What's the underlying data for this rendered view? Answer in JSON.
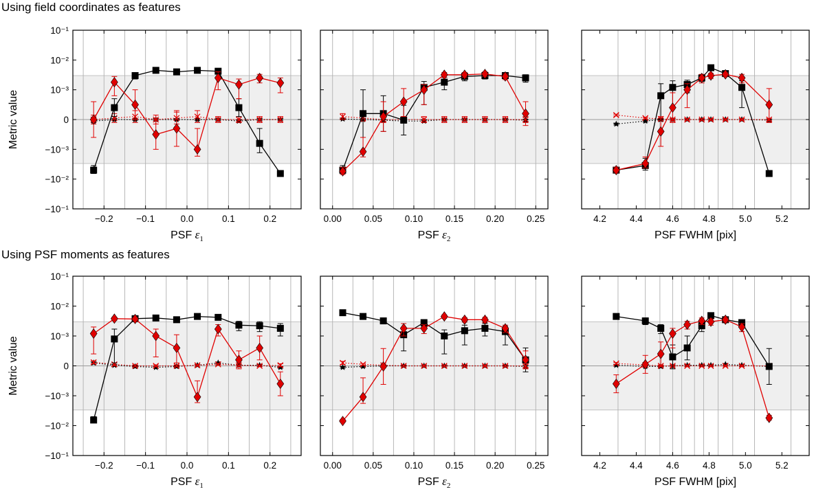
{
  "sections": [
    {
      "title": "Using field coordinates as features"
    },
    {
      "title": "Using PSF moments as features"
    }
  ],
  "shared": {
    "ylabel": "Metric value",
    "ytick_labels": [
      "−10⁻¹",
      "−10⁻²",
      "−10⁻³",
      "0",
      "10⁻³",
      "10⁻²",
      "10⁻¹"
    ],
    "ytick_values": [
      -0.1,
      -0.01,
      -0.001,
      0,
      0.001,
      0.01,
      0.1
    ],
    "linthresh": 0.001,
    "band": [
      -0.003,
      0.003
    ],
    "colors": {
      "black_series": "#000000",
      "red_series": "#e00000",
      "band": "#efefef",
      "grid": "#b0b0b0"
    }
  },
  "columns": [
    {
      "xlabel_prefix": "PSF ",
      "xlabel_symbol": "ε",
      "xlabel_subscript": "1",
      "xlabel": "",
      "xlim": [
        -0.275,
        0.275
      ],
      "xticks": [
        -0.2,
        -0.1,
        0.0,
        0.1,
        0.2
      ],
      "xtick_labels": [
        "−0.2",
        "−0.1",
        "0.0",
        "0.1",
        "0.2"
      ],
      "gridlines": [
        -0.25,
        -0.2,
        -0.15,
        -0.1,
        -0.05,
        0.0,
        0.05,
        0.1,
        0.15,
        0.2,
        0.25
      ],
      "bins": [
        -0.225,
        -0.175,
        -0.125,
        -0.075,
        -0.025,
        0.025,
        0.075,
        0.125,
        0.175,
        0.225
      ]
    },
    {
      "xlabel_prefix": "PSF ",
      "xlabel_symbol": "ε",
      "xlabel_subscript": "2",
      "xlabel": "",
      "xlim": [
        -0.015,
        0.265
      ],
      "xticks": [
        0.0,
        0.05,
        0.1,
        0.15,
        0.2,
        0.25
      ],
      "xtick_labels": [
        "0.00",
        "0.05",
        "0.10",
        "0.15",
        "0.20",
        "0.25"
      ],
      "gridlines": [
        0.0,
        0.025,
        0.05,
        0.075,
        0.1,
        0.125,
        0.15,
        0.175,
        0.2,
        0.225,
        0.25
      ],
      "bins": [
        0.0125,
        0.0375,
        0.0625,
        0.0875,
        0.1125,
        0.1375,
        0.1625,
        0.1875,
        0.2125,
        0.2375
      ]
    },
    {
      "xlabel_prefix": "",
      "xlabel_symbol": "",
      "xlabel_subscript": "",
      "xlabel": "PSF FWHM [pix]",
      "xlim": [
        4.1,
        5.35
      ],
      "xticks": [
        4.2,
        4.4,
        4.6,
        4.8,
        5.0,
        5.2
      ],
      "xtick_labels": [
        "4.2",
        "4.4",
        "4.6",
        "4.8",
        "5.0",
        "5.2"
      ],
      "gridlines": [
        4.3,
        4.45,
        4.53,
        4.6,
        4.65,
        4.72,
        4.77,
        4.85,
        4.93,
        5.05,
        5.25
      ],
      "bins": [
        4.29,
        4.45,
        4.535,
        4.6,
        4.68,
        4.76,
        4.81,
        4.89,
        4.98,
        5.13
      ]
    }
  ],
  "chart_data": [
    {
      "type": "line",
      "row": 0,
      "col": 0,
      "series": [
        {
          "name": "black squares",
          "marker": "square",
          "color": "#000000",
          "dotted": false,
          "values": [
            -0.005,
            0.0004,
            0.003,
            0.0045,
            0.004,
            0.0045,
            0.0042,
            0.0004,
            -0.0008,
            -0.0065
          ],
          "errors": [
            0.0015,
            0.0003,
            0.0007,
            0.0005,
            0.0005,
            0.0005,
            0.0005,
            0.0003,
            0.0005,
            0
          ]
        },
        {
          "name": "red diamonds",
          "marker": "diamond",
          "color": "#e00000",
          "dotted": false,
          "values": [
            0.0,
            0.0018,
            0.0005,
            -0.0005,
            -0.0003,
            -0.001,
            0.0025,
            0.0015,
            0.0025,
            0.0017
          ],
          "errors": [
            0.0006,
            0.001,
            0.0005,
            0.0005,
            0.0006,
            0.0007,
            0.0015,
            0.0008,
            0.0008,
            0.0008
          ]
        },
        {
          "name": "black stars",
          "marker": "star",
          "color": "#000000",
          "dotted": true,
          "values": [
            -5e-05,
            0.0,
            0.0,
            0.0,
            0.0,
            0.0,
            0.0,
            -5e-05,
            0.0,
            0.0
          ],
          "errors": [
            5e-05,
            3e-05,
            3e-05,
            3e-05,
            3e-05,
            3e-05,
            3e-05,
            5e-05,
            3e-05,
            3e-05
          ]
        },
        {
          "name": "red crosses",
          "marker": "cross",
          "color": "#e00000",
          "dotted": true,
          "values": [
            0.0,
            5e-05,
            0.0001,
            0.0,
            5e-05,
            0.0001,
            0.0,
            0.0,
            0.0,
            0.0
          ],
          "errors": [
            0.00015,
            0.00015,
            0.0002,
            0.00015,
            0.0002,
            0.0002,
            0.0001,
            0.0001,
            0.0001,
            0.0001
          ]
        }
      ]
    },
    {
      "type": "line",
      "row": 0,
      "col": 1,
      "series": [
        {
          "name": "black squares",
          "marker": "square",
          "color": "#000000",
          "dotted": false,
          "values": [
            -0.005,
            0.0002,
            0.0002,
            -2e-05,
            0.0012,
            0.0018,
            0.0028,
            0.003,
            0.003,
            0.0025
          ],
          "errors": [
            0.0015,
            0.0008,
            0.0006,
            0.0005,
            0.0007,
            0.0008,
            0.0008,
            0.0007,
            0.0006,
            0.0007
          ]
        },
        {
          "name": "red diamonds",
          "marker": "diamond",
          "color": "#e00000",
          "dotted": false,
          "values": [
            -0.0055,
            -0.0012,
            0.0001,
            0.0006,
            0.001,
            0.0032,
            0.0032,
            0.0034,
            0.0028,
            0.0002
          ],
          "errors": [
            0.0015,
            0.0006,
            0.0005,
            0.0005,
            0.0005,
            0.0006,
            0.0006,
            0.0006,
            0.0006,
            0.0004
          ]
        },
        {
          "name": "black stars",
          "marker": "star",
          "color": "#000000",
          "dotted": true,
          "values": [
            2e-05,
            0.0,
            -2e-05,
            -5e-05,
            -5e-05,
            0.0,
            0.0,
            0.0,
            0.0,
            -2e-05
          ],
          "errors": [
            3e-05,
            3e-05,
            3e-05,
            5e-05,
            5e-05,
            3e-05,
            3e-05,
            3e-05,
            3e-05,
            3e-05
          ]
        },
        {
          "name": "red crosses",
          "marker": "cross",
          "color": "#e00000",
          "dotted": true,
          "values": [
            0.0001,
            5e-05,
            0.0,
            0.0,
            0.0,
            0.0,
            0.0,
            0.0,
            0.0,
            0.0
          ],
          "errors": [
            0.0001,
            0.0001,
            0.0001,
            0.0001,
            0.0001,
            0.0001,
            0.0001,
            0.0001,
            0.0001,
            0.0001
          ]
        }
      ]
    },
    {
      "type": "line",
      "row": 0,
      "col": 2,
      "series": [
        {
          "name": "black squares",
          "marker": "square",
          "color": "#000000",
          "dotted": false,
          "values": [
            -0.005,
            -0.0035,
            0.0008,
            0.0012,
            0.0015,
            0.0025,
            0.0055,
            0.0035,
            0.0012,
            -0.0065
          ],
          "errors": [
            0.0008,
            0.0015,
            0.0008,
            0.0008,
            0.0006,
            0.0006,
            0.0005,
            0.0005,
            0.0008,
            0
          ]
        },
        {
          "name": "red diamonds",
          "marker": "diamond",
          "color": "#e00000",
          "dotted": false,
          "values": [
            -0.005,
            -0.003,
            -0.0004,
            0.0004,
            0.001,
            0.0025,
            0.003,
            0.0033,
            0.0025,
            0.0005
          ],
          "errors": [
            0.001,
            0.0012,
            0.0005,
            0.0005,
            0.0006,
            0.0008,
            0.0006,
            0.0005,
            0.0008,
            0.0006
          ]
        },
        {
          "name": "black stars",
          "marker": "star",
          "color": "#000000",
          "dotted": true,
          "values": [
            -0.00015,
            -5e-05,
            0.0,
            0.0,
            0.0,
            0.0,
            0.0,
            0.0,
            0.0,
            -2e-05
          ],
          "errors": [
            3e-05,
            3e-05,
            3e-05,
            3e-05,
            3e-05,
            3e-05,
            3e-05,
            3e-05,
            3e-05,
            3e-05
          ]
        },
        {
          "name": "red crosses",
          "marker": "cross",
          "color": "#e00000",
          "dotted": true,
          "values": [
            0.00015,
            5e-05,
            2e-05,
            0.0,
            0.0,
            0.0,
            0.0,
            0.0,
            0.0,
            0.0
          ],
          "errors": [
            3e-05,
            3e-05,
            3e-05,
            3e-05,
            3e-05,
            3e-05,
            3e-05,
            3e-05,
            3e-05,
            3e-05
          ]
        }
      ]
    },
    {
      "type": "line",
      "row": 1,
      "col": 0,
      "series": [
        {
          "name": "black squares",
          "marker": "square",
          "color": "#000000",
          "dotted": false,
          "values": [
            -0.0065,
            0.0009,
            0.0038,
            0.004,
            0.0035,
            0.0045,
            0.0042,
            0.0023,
            0.0022,
            0.0018
          ],
          "errors": [
            0.0015,
            0.0008,
            0.0005,
            0.0005,
            0.0005,
            0.0005,
            0.0005,
            0.0008,
            0.0008,
            0.0008
          ]
        },
        {
          "name": "red diamonds",
          "marker": "diamond",
          "color": "#e00000",
          "dotted": false,
          "values": [
            0.0012,
            0.0038,
            0.0037,
            0.001,
            0.0006,
            -0.0011,
            0.0017,
            0.0002,
            0.0006,
            -0.0006
          ],
          "errors": [
            0.0008,
            0.0005,
            0.0005,
            0.0007,
            0.0005,
            0.0006,
            0.0007,
            0.0003,
            0.0004,
            0.0004
          ]
        },
        {
          "name": "black stars",
          "marker": "star",
          "color": "#000000",
          "dotted": true,
          "values": [
            0.0001,
            2e-05,
            -2e-05,
            -5e-05,
            -2e-05,
            2e-05,
            0.0001,
            2e-05,
            2e-05,
            -5e-05
          ],
          "errors": [
            3e-05,
            3e-05,
            3e-05,
            3e-05,
            3e-05,
            3e-05,
            3e-05,
            3e-05,
            3e-05,
            3e-05
          ]
        },
        {
          "name": "red crosses",
          "marker": "cross",
          "color": "#e00000",
          "dotted": true,
          "values": [
            0.00012,
            5e-05,
            0.0,
            0.0,
            0.0,
            2e-05,
            5e-05,
            2e-05,
            0.0,
            2e-05
          ],
          "errors": [
            5e-05,
            5e-05,
            3e-05,
            3e-05,
            3e-05,
            3e-05,
            3e-05,
            3e-05,
            3e-05,
            5e-05
          ]
        }
      ]
    },
    {
      "type": "line",
      "row": 1,
      "col": 1,
      "series": [
        {
          "name": "black squares",
          "marker": "square",
          "color": "#000000",
          "dotted": false,
          "values": [
            0.006,
            0.0045,
            0.0032,
            0.0011,
            0.0028,
            0.001,
            0.0015,
            0.0018,
            0.0014,
            0.0002
          ],
          "errors": [
            0,
            0,
            0.0006,
            0.0006,
            0.0007,
            0.0006,
            0.0008,
            0.0008,
            0.0007,
            0.0004
          ]
        },
        {
          "name": "red diamonds",
          "marker": "diamond",
          "color": "#e00000",
          "dotted": false,
          "values": [
            -0.007,
            -0.0011,
            -2e-05,
            0.0018,
            0.0018,
            0.0045,
            0.0035,
            0.0035,
            0.0018,
            0.0002
          ],
          "errors": [
            0.0008,
            0.0007,
            0.0006,
            0.0008,
            0.0006,
            0.0006,
            0.0006,
            0.0007,
            0.0005,
            0.0003
          ]
        },
        {
          "name": "black stars",
          "marker": "star",
          "color": "#000000",
          "dotted": true,
          "values": [
            -5e-05,
            -2e-05,
            0.0,
            0.0,
            0.0,
            0.0,
            0.0,
            0.0,
            0.0,
            -2e-05
          ],
          "errors": [
            3e-05,
            3e-05,
            3e-05,
            3e-05,
            3e-05,
            3e-05,
            3e-05,
            3e-05,
            3e-05,
            3e-05
          ]
        },
        {
          "name": "red crosses",
          "marker": "cross",
          "color": "#e00000",
          "dotted": true,
          "values": [
            0.0001,
            5e-05,
            2e-05,
            0.0,
            0.0,
            0.0,
            0.0,
            0.0,
            0.0,
            0.0
          ],
          "errors": [
            5e-05,
            3e-05,
            3e-05,
            3e-05,
            3e-05,
            3e-05,
            3e-05,
            3e-05,
            3e-05,
            5e-05
          ]
        }
      ]
    },
    {
      "type": "line",
      "row": 1,
      "col": 2,
      "series": [
        {
          "name": "black squares",
          "marker": "square",
          "color": "#000000",
          "dotted": false,
          "values": [
            0.0045,
            0.0032,
            0.0018,
            0.0003,
            0.0006,
            0.0022,
            0.0048,
            0.0035,
            0.0028,
            -2e-05
          ],
          "errors": [
            0,
            0.0008,
            0.0006,
            0.0004,
            0.0004,
            0.0008,
            0.0006,
            0.0006,
            0.0006,
            0.0006
          ]
        },
        {
          "name": "red diamonds",
          "marker": "diamond",
          "color": "#e00000",
          "dotted": false,
          "values": [
            -0.0006,
            5e-05,
            0.0004,
            0.0012,
            0.0024,
            0.0032,
            0.003,
            0.0035,
            0.002,
            -0.0055
          ],
          "errors": [
            0.0003,
            0.0003,
            0.0004,
            0.0006,
            0.0007,
            0.0008,
            0.0007,
            0.0006,
            0.0006,
            0.001
          ]
        },
        {
          "name": "black stars",
          "marker": "star",
          "color": "#000000",
          "dotted": true,
          "values": [
            2e-05,
            -2e-05,
            -2e-05,
            0.0,
            2e-05,
            2e-05,
            2e-05,
            5e-05,
            2e-05,
            -2e-05
          ],
          "errors": [
            3e-05,
            3e-05,
            3e-05,
            3e-05,
            3e-05,
            3e-05,
            3e-05,
            3e-05,
            3e-05,
            3e-05
          ]
        },
        {
          "name": "red crosses",
          "marker": "cross",
          "color": "#e00000",
          "dotted": true,
          "values": [
            8e-05,
            3e-05,
            0.0,
            0.0,
            0.0,
            0.0,
            0.0,
            0.0,
            0.0,
            0.0
          ],
          "errors": [
            3e-05,
            3e-05,
            3e-05,
            3e-05,
            3e-05,
            3e-05,
            3e-05,
            3e-05,
            3e-05,
            3e-05
          ]
        }
      ]
    }
  ]
}
